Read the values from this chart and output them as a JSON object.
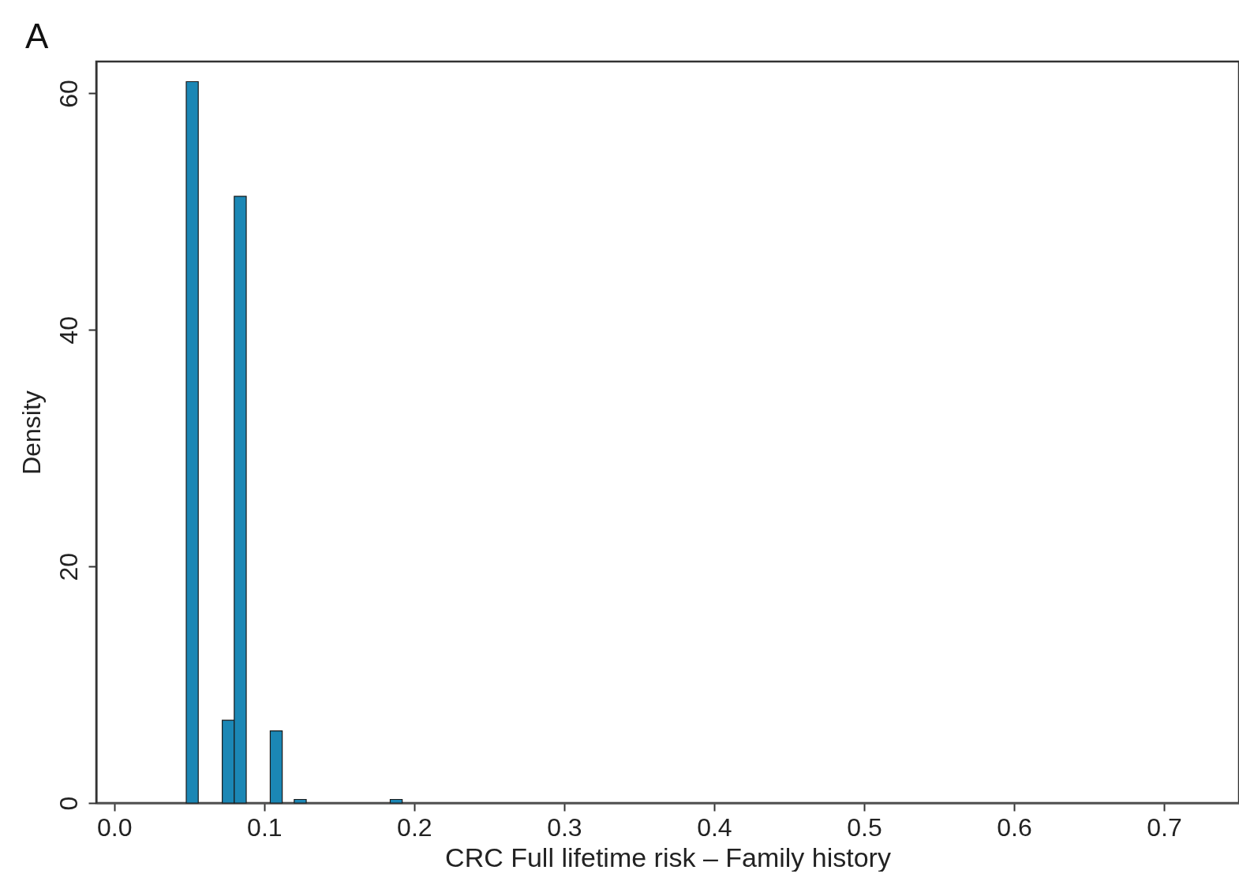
{
  "chart_data": {
    "type": "histogram",
    "title": "A",
    "xlabel": "CRC Full lifetime risk – Family history",
    "ylabel": "Density",
    "bins": [
      0.048,
      0.056,
      0.064,
      0.072,
      0.08,
      0.088,
      0.096,
      0.104,
      0.112,
      0.12,
      0.128,
      0.136,
      0.144,
      0.152,
      0.16,
      0.168,
      0.176,
      0.184,
      0.192
    ],
    "values": [
      61,
      0,
      0,
      7,
      51.3,
      0,
      0,
      6.1,
      0,
      0.3,
      0,
      0,
      0,
      0,
      0,
      0,
      0,
      0.3
    ],
    "color": "#1b87b5",
    "xlim": [
      -0.012,
      0.75
    ],
    "xticks": [
      {
        "value": 0,
        "label": "0.0"
      },
      0.1,
      0.2,
      0.3,
      0.4,
      0.5,
      0.6,
      0.7
    ],
    "ylim": [
      0,
      62.7
    ],
    "yticks": [
      0,
      20,
      40,
      60
    ],
    "grid": false
  }
}
